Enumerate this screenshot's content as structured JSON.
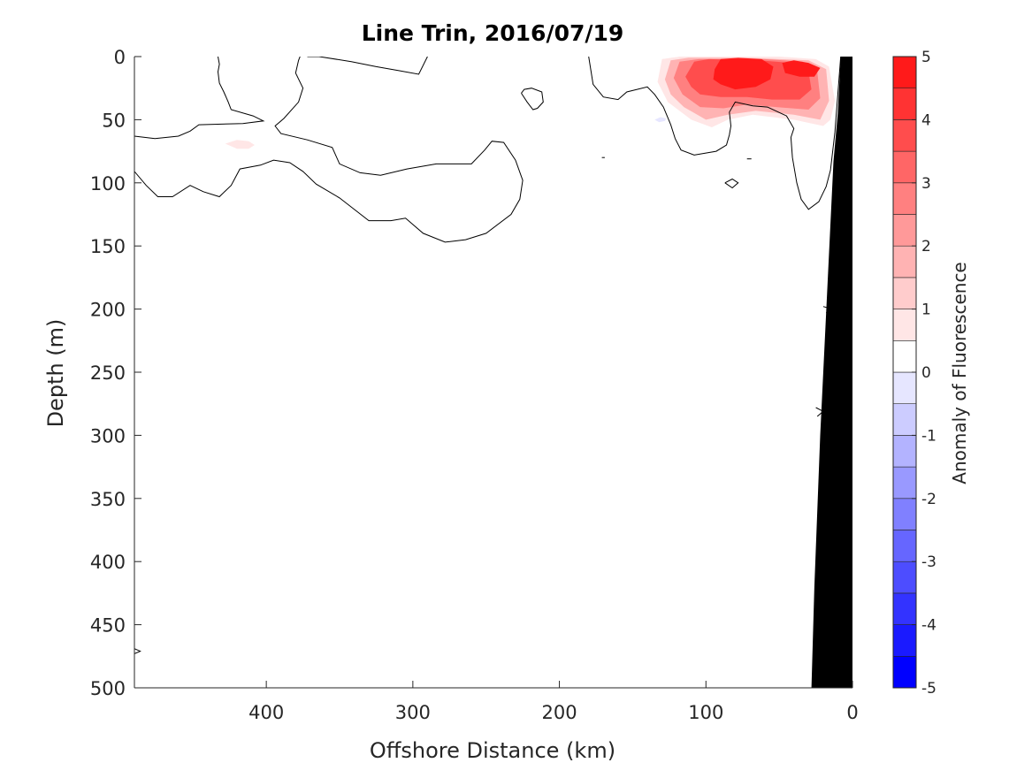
{
  "chart_data": {
    "type": "contour",
    "title": "Line Trin, 2016/07/19",
    "xlabel": "Offshore Distance (km)",
    "ylabel": "Depth (m)",
    "xlim": [
      490,
      0
    ],
    "ylim": [
      0,
      500
    ],
    "x_ticks": [
      "400",
      "300",
      "200",
      "100",
      "0"
    ],
    "x_tick_values": [
      400,
      300,
      200,
      100,
      0
    ],
    "y_ticks": [
      "0",
      "50",
      "100",
      "150",
      "200",
      "250",
      "300",
      "350",
      "400",
      "450",
      "500"
    ],
    "y_tick_values": [
      0,
      50,
      100,
      150,
      200,
      250,
      300,
      350,
      400,
      450,
      500
    ],
    "y_reversed": true,
    "grid": false,
    "colorbar": {
      "label": "Anomaly of Fluorescence",
      "range": [
        -5,
        5
      ],
      "ticks": [
        "5",
        "4",
        "3",
        "2",
        "1",
        "0",
        "-1",
        "-2",
        "-3",
        "-4",
        "-5"
      ],
      "tick_values": [
        5,
        4,
        3,
        2,
        1,
        0,
        -1,
        -2,
        -3,
        -4,
        -5
      ],
      "levels": [
        -5,
        -4.5,
        -4,
        -3.5,
        -3,
        -2.5,
        -2,
        -1.5,
        -1,
        -0.5,
        0,
        0.5,
        1,
        1.5,
        2,
        2.5,
        3,
        3.5,
        4,
        4.5,
        5
      ],
      "colors": [
        "#0000ff",
        "#1a1aff",
        "#3333ff",
        "#4d4dff",
        "#6666ff",
        "#8080ff",
        "#9999ff",
        "#b3b3ff",
        "#ccccff",
        "#e6e6ff",
        "#ffffff",
        "#ffffff",
        "#ffe6e6",
        "#ffcccc",
        "#ffb3b3",
        "#ff9999",
        "#ff8080",
        "#ff6666",
        "#ff4d4d",
        "#ff3333",
        "#ff1a1a",
        "#ff0000"
      ]
    },
    "positive_anomaly_patch": [
      {
        "level": 0.5,
        "points": [
          [
            133,
            20
          ],
          [
            130,
            2
          ],
          [
            118,
            0
          ],
          [
            72,
            0
          ],
          [
            50,
            0
          ],
          [
            25,
            2
          ],
          [
            16,
            8
          ],
          [
            12,
            35
          ],
          [
            15,
            50
          ],
          [
            20,
            55
          ],
          [
            40,
            50
          ],
          [
            68,
            46
          ],
          [
            85,
            50
          ],
          [
            96,
            56
          ],
          [
            110,
            50
          ],
          [
            126,
            36
          ]
        ]
      },
      {
        "level": 1.5,
        "points": [
          [
            128,
            18
          ],
          [
            124,
            3
          ],
          [
            112,
            1
          ],
          [
            72,
            1
          ],
          [
            30,
            3
          ],
          [
            18,
            10
          ],
          [
            16,
            35
          ],
          [
            22,
            50
          ],
          [
            40,
            46
          ],
          [
            66,
            43
          ],
          [
            85,
            46
          ],
          [
            100,
            50
          ],
          [
            115,
            40
          ],
          [
            124,
            30
          ]
        ]
      },
      {
        "level": 2.5,
        "points": [
          [
            122,
            17
          ],
          [
            118,
            4
          ],
          [
            105,
            2
          ],
          [
            60,
            2
          ],
          [
            34,
            4
          ],
          [
            24,
            12
          ],
          [
            22,
            33
          ],
          [
            30,
            42
          ],
          [
            52,
            40
          ],
          [
            72,
            38
          ],
          [
            88,
            41
          ],
          [
            104,
            40
          ],
          [
            116,
            30
          ]
        ]
      },
      {
        "level": 3.5,
        "points": [
          [
            114,
            16
          ],
          [
            108,
            4
          ],
          [
            98,
            2
          ],
          [
            64,
            3
          ],
          [
            42,
            5
          ],
          [
            30,
            12
          ],
          [
            28,
            26
          ],
          [
            36,
            34
          ],
          [
            55,
            34
          ],
          [
            72,
            32
          ],
          [
            90,
            32
          ],
          [
            104,
            30
          ],
          [
            110,
            24
          ]
        ]
      },
      {
        "level": 4.5,
        "points": [
          [
            94,
            10
          ],
          [
            90,
            2
          ],
          [
            78,
            1
          ],
          [
            62,
            2
          ],
          [
            54,
            8
          ],
          [
            56,
            18
          ],
          [
            66,
            24
          ],
          [
            80,
            26
          ],
          [
            90,
            22
          ],
          [
            95,
            18
          ]
        ]
      },
      {
        "level": 4.5,
        "points": [
          [
            48,
            5
          ],
          [
            40,
            3
          ],
          [
            30,
            5
          ],
          [
            22,
            9
          ],
          [
            26,
            16
          ],
          [
            36,
            16
          ],
          [
            46,
            13
          ]
        ]
      }
    ],
    "small_features": [
      {
        "level": 0.5,
        "points": [
          [
            428,
            69
          ],
          [
            420,
            66
          ],
          [
            412,
            67
          ],
          [
            408,
            70
          ],
          [
            412,
            73
          ],
          [
            420,
            73
          ]
        ]
      },
      {
        "level": -0.5,
        "points": [
          [
            135,
            50
          ],
          [
            131,
            48
          ],
          [
            127,
            49
          ],
          [
            128,
            51
          ],
          [
            132,
            52
          ]
        ]
      }
    ],
    "zero_contours": [
      [
        [
          490,
          63
        ],
        [
          476,
          65
        ],
        [
          460,
          63
        ],
        [
          452,
          59
        ],
        [
          446,
          54
        ],
        [
          416,
          53
        ],
        [
          402,
          51
        ],
        [
          409,
          47
        ],
        [
          424,
          42
        ],
        [
          426,
          36
        ],
        [
          429,
          28
        ],
        [
          432,
          21
        ],
        [
          433,
          12
        ],
        [
          432,
          6
        ],
        [
          433,
          0
        ]
      ],
      [
        [
          490,
          91
        ],
        [
          482,
          102
        ],
        [
          474,
          111
        ],
        [
          464,
          111
        ],
        [
          452,
          102
        ],
        [
          443,
          107
        ],
        [
          432,
          111
        ],
        [
          424,
          102
        ],
        [
          418,
          89
        ],
        [
          404,
          86
        ],
        [
          395,
          82
        ],
        [
          384,
          84
        ],
        [
          375,
          91
        ],
        [
          366,
          101
        ],
        [
          350,
          112
        ],
        [
          330,
          130
        ],
        [
          315,
          130
        ],
        [
          305,
          128
        ],
        [
          293,
          140
        ],
        [
          278,
          147
        ],
        [
          264,
          145
        ],
        [
          250,
          140
        ],
        [
          233,
          125
        ],
        [
          227,
          113
        ],
        [
          225,
          98
        ],
        [
          230,
          82
        ],
        [
          238,
          68
        ],
        [
          246,
          67
        ],
        [
          251,
          74
        ],
        [
          260,
          85
        ],
        [
          284,
          85
        ],
        [
          304,
          89
        ],
        [
          322,
          94
        ],
        [
          336,
          92
        ],
        [
          350,
          85
        ],
        [
          355,
          72
        ],
        [
          372,
          66
        ],
        [
          390,
          61
        ],
        [
          394,
          55
        ],
        [
          388,
          49
        ],
        [
          378,
          36
        ],
        [
          375,
          25
        ],
        [
          380,
          13
        ],
        [
          378,
          3
        ],
        [
          377,
          0
        ]
      ],
      [
        [
          372,
          0
        ],
        [
          364,
          0
        ],
        [
          342,
          4
        ],
        [
          325,
          8
        ],
        [
          310,
          11
        ],
        [
          296,
          14
        ],
        [
          290,
          0
        ]
      ],
      [
        [
          226,
          29
        ],
        [
          224,
          26
        ],
        [
          219,
          25
        ],
        [
          212,
          28
        ],
        [
          211,
          36
        ],
        [
          215,
          41
        ],
        [
          218,
          42
        ],
        [
          222,
          36
        ],
        [
          226,
          29
        ]
      ],
      [
        [
          180,
          0
        ],
        [
          177,
          22
        ],
        [
          170,
          32
        ],
        [
          160,
          34
        ],
        [
          154,
          28
        ],
        [
          140,
          24
        ],
        [
          135,
          30
        ],
        [
          129,
          40
        ],
        [
          124,
          54
        ],
        [
          121,
          65
        ],
        [
          117,
          74
        ],
        [
          108,
          78
        ],
        [
          93,
          75
        ],
        [
          86,
          70
        ],
        [
          84,
          62
        ],
        [
          83,
          55
        ],
        [
          84,
          44
        ],
        [
          80,
          36
        ],
        [
          68,
          39
        ],
        [
          58,
          40
        ],
        [
          45,
          47
        ],
        [
          40,
          57
        ],
        [
          42,
          64
        ],
        [
          41,
          80
        ],
        [
          38,
          100
        ],
        [
          35,
          113
        ],
        [
          30,
          121
        ],
        [
          23,
          115
        ],
        [
          18,
          103
        ],
        [
          15,
          90
        ],
        [
          12,
          60
        ],
        [
          10,
          30
        ],
        [
          8,
          0
        ]
      ],
      [
        [
          171,
          80
        ],
        [
          169,
          80
        ]
      ],
      [
        [
          72,
          81
        ],
        [
          69,
          81
        ]
      ],
      [
        [
          87,
          100
        ],
        [
          82,
          97
        ],
        [
          78,
          100
        ],
        [
          82,
          104
        ],
        [
          87,
          100
        ]
      ],
      [
        [
          20,
          198
        ],
        [
          14,
          200
        ],
        [
          18,
          203
        ]
      ],
      [
        [
          25,
          278
        ],
        [
          20,
          281
        ],
        [
          24,
          285
        ]
      ],
      [
        [
          490,
          469
        ],
        [
          486,
          471
        ],
        [
          490,
          473
        ]
      ]
    ],
    "bathymetry": [
      [
        0,
        0
      ],
      [
        8,
        0
      ],
      [
        10,
        45
      ],
      [
        13,
        83
      ],
      [
        17,
        180
      ],
      [
        22,
        300
      ],
      [
        26,
        420
      ],
      [
        28,
        500
      ],
      [
        0,
        500
      ]
    ]
  }
}
